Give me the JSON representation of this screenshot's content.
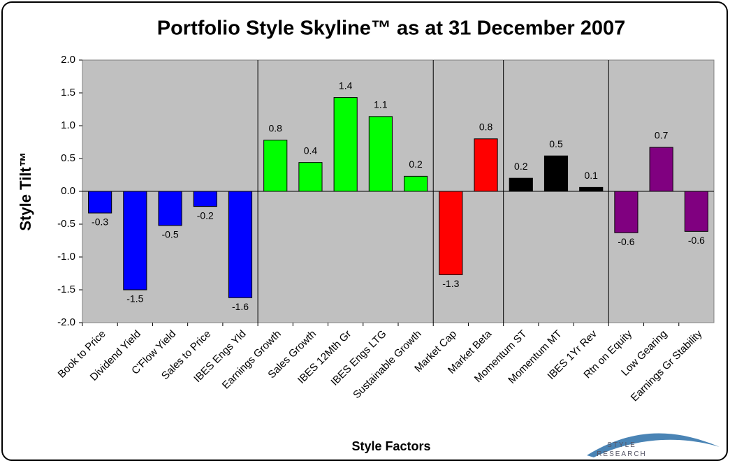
{
  "chart_data": {
    "type": "bar",
    "title": "Portfolio Style Skyline™ as at 31 December 2007",
    "y_label": "Style Tilt™",
    "x_label": "Style Factors",
    "annotations": [
      "STYLE",
      "RESEARCH"
    ],
    "categories": [
      "Book to Price",
      "Dividend Yield",
      "C'Flow Yield",
      "Sales to Price",
      "IBES Engs Yld",
      "Earnings Growth",
      "Sales Growth",
      "IBES 12Mth Gr",
      "IBES Engs LTG",
      "Sustainable Growth",
      "Market Cap",
      "Market Beta",
      "Momentum ST",
      "Momentum MT",
      "IBES 1Yr Rev",
      "Rtn on Equity",
      "Low Gearing",
      "Earnings Gr Stability"
    ],
    "values": [
      -0.33,
      -1.5,
      -0.52,
      -0.23,
      -1.62,
      0.78,
      0.44,
      1.43,
      1.14,
      0.23,
      -1.27,
      0.8,
      0.2,
      0.54,
      0.06,
      -0.63,
      0.67,
      -0.61
    ],
    "value_labels": [
      "-0.3",
      "-1.5",
      "-0.5",
      "-0.2",
      "-1.6",
      "0.8",
      "0.4",
      "1.4",
      "1.1",
      "0.2",
      "-1.3",
      "0.8",
      "0.2",
      "0.5",
      "0.1",
      "-0.6",
      "0.7",
      "-0.6"
    ],
    "colors": [
      "#0000ff",
      "#0000ff",
      "#0000ff",
      "#0000ff",
      "#0000ff",
      "#00ff00",
      "#00ff00",
      "#00ff00",
      "#00ff00",
      "#00ff00",
      "#ff0000",
      "#ff0000",
      "#000000",
      "#000000",
      "#000000",
      "#800080",
      "#800080",
      "#800080"
    ],
    "ylim": [
      -2.0,
      2.0
    ],
    "yticks": [
      {
        "value": -2.0,
        "label": "-2.0"
      },
      {
        "value": -1.5,
        "label": "-1.5"
      },
      {
        "value": -1.0,
        "label": "-1.0"
      },
      {
        "value": -0.5,
        "label": "-0.5"
      },
      {
        "value": 0.0,
        "label": "0.0"
      },
      {
        "value": 0.5,
        "label": "0.5"
      },
      {
        "value": 1.0,
        "label": "1.0"
      },
      {
        "value": 1.5,
        "label": "1.5"
      },
      {
        "value": 2.0,
        "label": "2.0"
      }
    ]
  }
}
